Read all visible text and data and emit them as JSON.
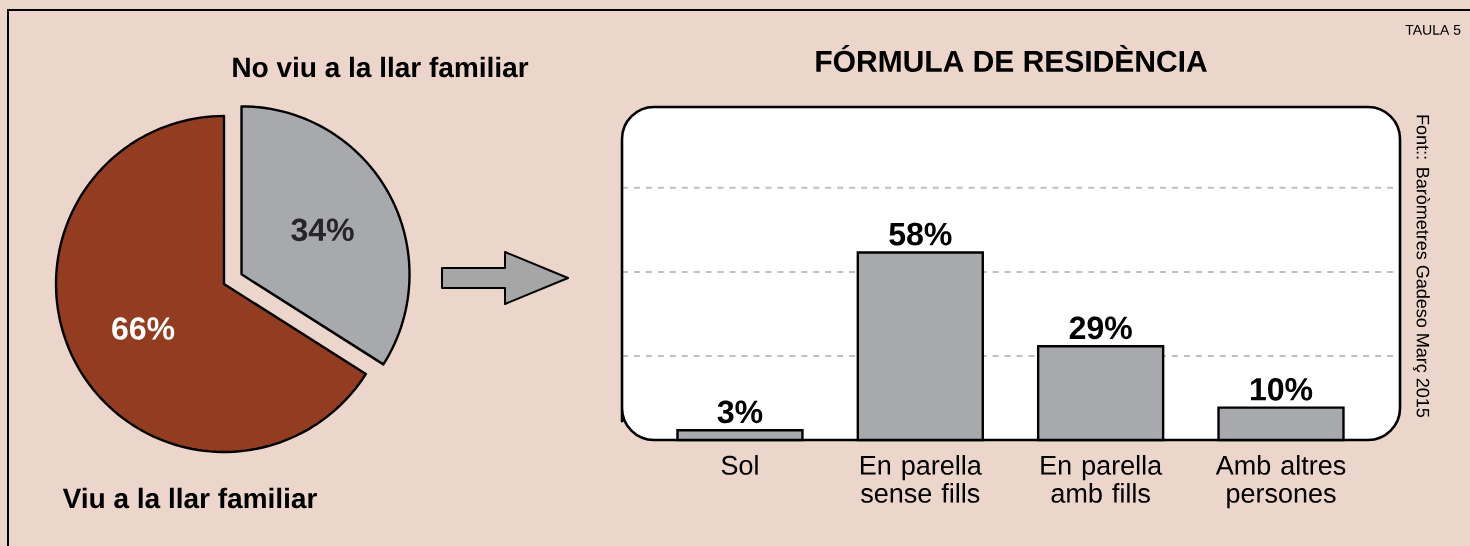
{
  "chart_data": [
    {
      "type": "pie",
      "categories": [
        "No viu a la llar familiar",
        "Viu a la llar familiar"
      ],
      "values": [
        34,
        66
      ],
      "colors": [
        "#a7a9ac",
        "#923c22"
      ],
      "value_labels": [
        "34%",
        "66%"
      ]
    },
    {
      "type": "bar",
      "title": "FÓRMULA DE RESIDÈNCIA",
      "categories": [
        "Sol",
        "En parella sense fills",
        "En parella amb fills",
        "Amb altres persones"
      ],
      "values": [
        3,
        58,
        29,
        10
      ],
      "color": "#a7a9ac",
      "value_labels": [
        "3%",
        "58%",
        "29%",
        "10%"
      ],
      "ylim": [
        0,
        103
      ],
      "yticks": [
        {
          "value": 26,
          "label": null
        },
        {
          "value": 52,
          "label": null
        },
        {
          "value": 78,
          "label": null
        }
      ],
      "grid": "y",
      "tick_labels": "x",
      "annotations": [
        "TAULA 5",
        "Font:: Baròmetres Gadeso Març 2015"
      ]
    }
  ]
}
